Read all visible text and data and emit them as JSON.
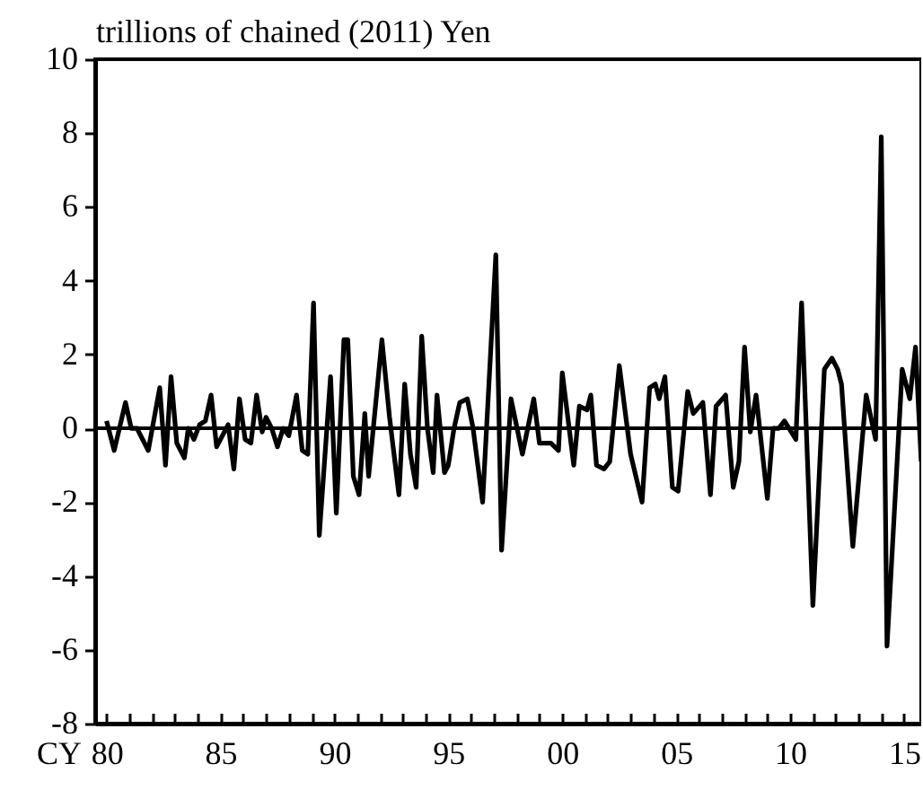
{
  "chart_data": {
    "type": "line",
    "ylabel": "trillions of chained (2011) Yen",
    "xlabel": "CY",
    "xlim": [
      "1980-01",
      "2016-04"
    ],
    "ylim": [
      -8,
      10
    ],
    "xticks": [
      {
        "value": "1980-07",
        "label": "80"
      },
      {
        "value": "1981-07",
        "label": null
      },
      {
        "value": "1982-07",
        "label": null
      },
      {
        "value": "1983-07",
        "label": null
      },
      {
        "value": "1984-07",
        "label": null
      },
      {
        "value": "1985-07",
        "label": "85"
      },
      {
        "value": "1986-07",
        "label": null
      },
      {
        "value": "1987-07",
        "label": null
      },
      {
        "value": "1988-07",
        "label": null
      },
      {
        "value": "1989-07",
        "label": null
      },
      {
        "value": "1990-07",
        "label": "90"
      },
      {
        "value": "1991-07",
        "label": null
      },
      {
        "value": "1992-07",
        "label": null
      },
      {
        "value": "1993-07",
        "label": null
      },
      {
        "value": "1994-07",
        "label": null
      },
      {
        "value": "1995-07",
        "label": "95"
      },
      {
        "value": "1996-07",
        "label": null
      },
      {
        "value": "1997-07",
        "label": null
      },
      {
        "value": "1998-07",
        "label": null
      },
      {
        "value": "1999-07",
        "label": null
      },
      {
        "value": "2000-07",
        "label": "00"
      },
      {
        "value": "2001-07",
        "label": null
      },
      {
        "value": "2002-07",
        "label": null
      },
      {
        "value": "2003-07",
        "label": null
      },
      {
        "value": "2004-07",
        "label": null
      },
      {
        "value": "2005-07",
        "label": "05"
      },
      {
        "value": "2006-07",
        "label": null
      },
      {
        "value": "2007-07",
        "label": null
      },
      {
        "value": "2008-07",
        "label": null
      },
      {
        "value": "2009-07",
        "label": null
      },
      {
        "value": "2010-07",
        "label": "10"
      },
      {
        "value": "2011-07",
        "label": null
      },
      {
        "value": "2012-07",
        "label": null
      },
      {
        "value": "2013-07",
        "label": null
      },
      {
        "value": "2014-07",
        "label": null
      },
      {
        "value": "2015-07",
        "label": "15"
      }
    ],
    "yticks": [
      -8,
      -6,
      -4,
      -2,
      0,
      2,
      4,
      6,
      8,
      10
    ],
    "ref_lines": [
      {
        "axis": "y",
        "value": 0,
        "label": null,
        "color": "#000000"
      }
    ],
    "series": [
      {
        "color": "#000000",
        "x": [
          "1980-07",
          "1980-11",
          "1981-05",
          "1981-08",
          "1981-11",
          "1982-05",
          "1982-11",
          "1983-02",
          "1983-05",
          "1983-08",
          "1983-12",
          "1984-02",
          "1984-05",
          "1984-08",
          "1984-11",
          "1985-02",
          "1985-05",
          "1985-08",
          "1985-11",
          "1986-02",
          "1986-05",
          "1986-08",
          "1986-11",
          "1987-02",
          "1987-05",
          "1987-07",
          "1987-10",
          "1988-01",
          "1988-04",
          "1988-07",
          "1988-11",
          "1989-02",
          "1989-05",
          "1989-08",
          "1989-11",
          "1990-05",
          "1990-08",
          "1990-12",
          "1991-02",
          "1991-05",
          "1991-08",
          "1991-11",
          "1992-01",
          "1992-08",
          "1992-12",
          "1993-05",
          "1993-08",
          "1993-11",
          "1994-02",
          "1994-05",
          "1994-08",
          "1994-11",
          "1995-01",
          "1995-05",
          "1995-07",
          "1995-10",
          "1996-01",
          "1996-05",
          "1996-08",
          "1997-01",
          "1997-08",
          "1997-11",
          "1998-04",
          "1998-10",
          "1999-04",
          "1999-07",
          "1999-10",
          "2000-01",
          "2000-05",
          "2000-07",
          "2001-01",
          "2001-04",
          "2001-08",
          "2001-10",
          "2002-01",
          "2002-05",
          "2002-08",
          "2003-01",
          "2003-07",
          "2004-01",
          "2004-05",
          "2004-08",
          "2004-10",
          "2005-01",
          "2005-05",
          "2005-08",
          "2006-01",
          "2006-04",
          "2006-09",
          "2007-01",
          "2007-04",
          "2007-09",
          "2008-01",
          "2008-04",
          "2008-07",
          "2008-10",
          "2009-01",
          "2009-07",
          "2009-10",
          "2010-01",
          "2010-04",
          "2010-10",
          "2011-01",
          "2011-07",
          "2012-01",
          "2012-05",
          "2012-08",
          "2012-10",
          "2013-04",
          "2013-11",
          "2014-04",
          "2014-07",
          "2014-10",
          "2015-06",
          "2015-10",
          "2016-01",
          "2016-04"
        ],
        "values": [
          0.2,
          -0.6,
          0.7,
          0,
          0,
          -0.6,
          1.1,
          -1,
          1.4,
          -0.4,
          -0.8,
          0,
          -0.3,
          0.1,
          0.2,
          0.9,
          -0.5,
          -0.2,
          0.1,
          -1.1,
          0.8,
          -0.3,
          -0.4,
          0.9,
          -0.1,
          0.3,
          0,
          -0.5,
          0,
          -0.2,
          0.9,
          -0.6,
          -0.7,
          3.4,
          -2.9,
          1.4,
          -2.3,
          2.4,
          2.4,
          -1.3,
          -1.8,
          0.4,
          -1.3,
          2.4,
          0.3,
          -1.8,
          1.2,
          -0.7,
          -1.6,
          2.5,
          0,
          -1.2,
          0.9,
          -1.2,
          -1,
          0,
          0.7,
          0.8,
          0,
          -2,
          4.7,
          -3.3,
          0.8,
          -0.7,
          0.8,
          -0.4,
          -0.4,
          -0.4,
          -0.6,
          1.5,
          -1,
          0.6,
          0.5,
          0.9,
          -1,
          -1.1,
          -0.9,
          1.7,
          -0.7,
          -2,
          1.1,
          1.2,
          0.8,
          1.4,
          -1.6,
          -1.7,
          1,
          0.4,
          0.7,
          -1.8,
          0.6,
          0.9,
          -1.6,
          -0.9,
          2.2,
          -0.1,
          0.9,
          -1.9,
          0,
          0,
          0.2,
          -0.3,
          3.4,
          -4.8,
          1.6,
          1.9,
          1.6,
          1.2,
          -3.2,
          0.9,
          -0.3,
          7.9,
          -5.9,
          1.6,
          0.8,
          2.2,
          -0.9
        ]
      }
    ]
  }
}
